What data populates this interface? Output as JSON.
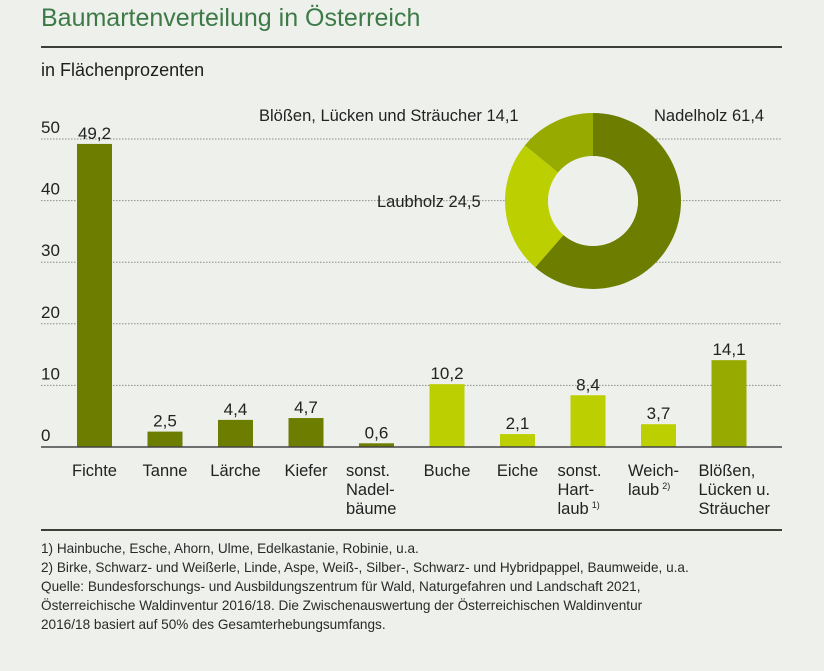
{
  "title": "Baumartenverteilung in Österreich",
  "subtitle": "in Flächenprozenten",
  "colors": {
    "background": "#edf0eb",
    "title": "#3d7a47",
    "nadelholz": "#6d7d00",
    "laubholz": "#bccf00",
    "bloessen": "#97aa00"
  },
  "chart_data": [
    {
      "type": "bar",
      "ylim": [
        0,
        50
      ],
      "yticks": [
        0,
        10,
        20,
        30,
        40,
        50
      ],
      "grid": true,
      "categories": [
        [
          "Fichte"
        ],
        [
          "Tanne"
        ],
        [
          "Lärche"
        ],
        [
          "Kiefer"
        ],
        [
          "sonst.",
          "Nadel-",
          "bäume"
        ],
        [
          "Buche"
        ],
        [
          "Eiche"
        ],
        [
          "sonst.",
          "Hart-",
          "laub"
        ],
        [
          "Weich-",
          "laub"
        ],
        [
          "Blößen,",
          "Lücken u.",
          "Sträucher"
        ]
      ],
      "category_footnotes": [
        "",
        "",
        "",
        "",
        "",
        "",
        "",
        "1)",
        "2)",
        ""
      ],
      "values": [
        49.2,
        2.5,
        4.4,
        4.7,
        0.6,
        10.2,
        2.1,
        8.4,
        3.7,
        14.1
      ],
      "value_labels": [
        "49,2",
        "2,5",
        "4,4",
        "4,7",
        "0,6",
        "10,2",
        "2,1",
        "8,4",
        "3,7",
        "14,1"
      ],
      "groups": [
        "nadelholz",
        "nadelholz",
        "nadelholz",
        "nadelholz",
        "nadelholz",
        "laubholz",
        "laubholz",
        "laubholz",
        "laubholz",
        "bloessen"
      ]
    },
    {
      "type": "pie",
      "donut": true,
      "slices": [
        {
          "label": "Nadelholz 61,4",
          "value": 61.4,
          "group": "nadelholz"
        },
        {
          "label": "Laubholz 24,5",
          "value": 24.5,
          "group": "laubholz"
        },
        {
          "label": "Blößen, Lücken und Sträucher 14,1",
          "value": 14.1,
          "group": "bloessen"
        }
      ]
    }
  ],
  "footnotes": [
    "1) Hainbuche, Esche, Ahorn, Ulme, Edelkastanie, Robinie, u.a.",
    "2) Birke, Schwarz- und Weißerle, Linde, Aspe, Weiß-, Silber-, Schwarz- und Hybridpappel, Baumweide, u.a.",
    "Quelle: Bundesforschungs- und Ausbildungszentrum für Wald, Naturgefahren und Landschaft 2021,",
    "Österreichische Waldinventur 2016/18. Die Zwischenauswertung der Österreichischen Waldinventur",
    "2016/18 basiert auf 50% des Gesamterhebungsumfangs."
  ]
}
